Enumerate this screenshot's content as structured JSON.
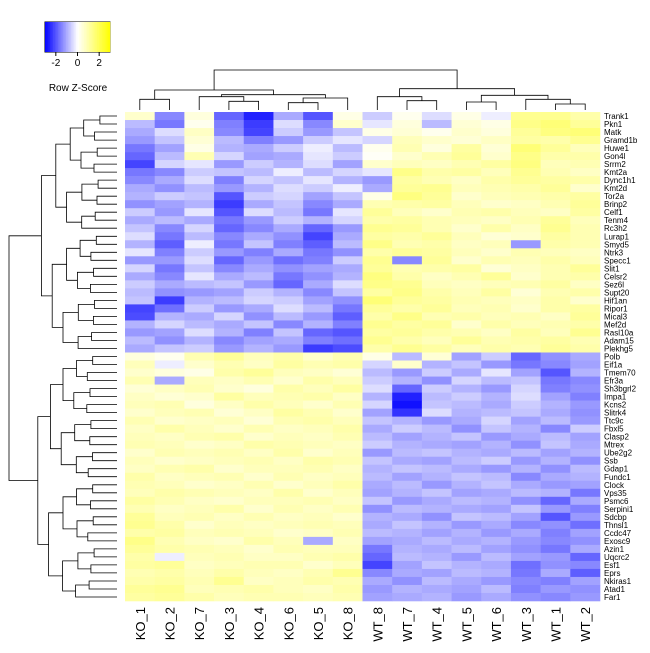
{
  "chart_data": {
    "type": "heatmap",
    "title": "",
    "xlabel": "",
    "ylabel": "",
    "color_key": {
      "label": "Row Z-Score",
      "ticks": [
        "-2",
        "0",
        "2"
      ],
      "range": [
        -3,
        3
      ],
      "colors": {
        "low": "#0000ff",
        "mid": "#ffffff",
        "high": "#ffff00"
      }
    },
    "columns": [
      "KO_1",
      "KO_2",
      "KO_7",
      "KO_3",
      "KO_4",
      "KO_6",
      "KO_5",
      "KO_8",
      "WT_8",
      "WT_7",
      "WT_4",
      "WT_5",
      "WT_6",
      "WT_3",
      "WT_1",
      "WT_2"
    ],
    "rows": [
      "Trank1",
      "Pkn1",
      "Matk",
      "Gramd1b",
      "Huwe1",
      "Gon4l",
      "Srrm2",
      "Kmt2a",
      "Dync1h1",
      "Kmt2d",
      "Tor2a",
      "Brinp2",
      "Celf1",
      "Tenm4",
      "Rc3h2",
      "Lurap1",
      "Smyd5",
      "Ntrk3",
      "Specc1",
      "Slit1",
      "Celsr2",
      "Sez6l",
      "Supt20",
      "Hif1an",
      "Ripor1",
      "Mical3",
      "Mef2d",
      "Rasl10a",
      "Adam15",
      "Plekhg5",
      "Polb",
      "Eif1a",
      "Tmem70",
      "Efr3a",
      "Sh3bgrl2",
      "Impa1",
      "Kcns2",
      "Slitrk4",
      "Ttc9c",
      "Fbxl5",
      "Clasp2",
      "Mtrex",
      "Ube2g2",
      "Ssb",
      "Gdap1",
      "Fundc1",
      "Clock",
      "Vps35",
      "Psmc6",
      "Serpini1",
      "Sdcbp",
      "Thnsl1",
      "Ccdc47",
      "Exosc9",
      "Azin1",
      "Uqcrc2",
      "Esf1",
      "Eprs",
      "Nkiras1",
      "Atad1",
      "Far1"
    ],
    "values": [
      [
        0.6,
        -1.4,
        0.4,
        -1.8,
        -2.6,
        -1.0,
        -2.0,
        0.3,
        -0.6,
        0.2,
        -0.4,
        0.3,
        -0.2,
        1.3,
        1.3,
        1.0
      ],
      [
        -0.8,
        -1.6,
        0.2,
        -1.5,
        -2.3,
        -0.4,
        -1.4,
        0.6,
        -0.3,
        0.4,
        -0.8,
        0.5,
        0.3,
        1.4,
        1.6,
        1.2
      ],
      [
        -1.0,
        -0.4,
        0.7,
        -1.4,
        -2.2,
        -0.6,
        -1.2,
        -0.7,
        0.3,
        0.5,
        0.2,
        0.6,
        0.4,
        1.2,
        1.5,
        1.6
      ],
      [
        -1.2,
        -0.7,
        0.5,
        -0.8,
        -1.5,
        -1.2,
        -0.6,
        -0.3,
        -0.5,
        0.8,
        0.6,
        0.5,
        0.7,
        1.1,
        1.0,
        1.3
      ],
      [
        -1.6,
        -1.1,
        0.3,
        -0.9,
        -1.0,
        -0.6,
        -0.2,
        -0.8,
        0.2,
        0.9,
        0.4,
        1.1,
        0.5,
        1.6,
        1.2,
        0.8
      ],
      [
        -1.8,
        -0.8,
        0.9,
        -0.5,
        -1.1,
        -1.0,
        -0.3,
        -0.6,
        0.1,
        0.6,
        0.9,
        1.2,
        0.6,
        1.4,
        1.0,
        1.0
      ],
      [
        -2.2,
        -0.5,
        -0.3,
        -1.2,
        -0.6,
        -0.9,
        -0.4,
        -1.1,
        0.6,
        0.8,
        0.7,
        0.9,
        1.1,
        1.5,
        0.8,
        0.9
      ],
      [
        -1.6,
        -1.4,
        -0.6,
        -0.7,
        -0.8,
        -0.2,
        -0.8,
        -0.5,
        -0.3,
        1.4,
        1.0,
        1.1,
        0.8,
        1.3,
        0.9,
        0.7
      ],
      [
        -1.4,
        -1.0,
        -0.4,
        -1.5,
        -0.5,
        -0.7,
        -0.3,
        -0.9,
        -1.2,
        1.1,
        0.9,
        0.7,
        1.0,
        1.2,
        1.1,
        1.0
      ],
      [
        -1.0,
        -1.3,
        -0.8,
        -1.2,
        -0.9,
        -0.4,
        -0.6,
        -0.2,
        -1.0,
        1.2,
        1.3,
        0.8,
        0.9,
        1.0,
        1.2,
        0.6
      ],
      [
        -0.9,
        -0.6,
        -0.7,
        -2.0,
        -0.6,
        -0.5,
        -1.1,
        -0.7,
        0.3,
        1.5,
        1.2,
        0.6,
        0.8,
        0.9,
        1.0,
        1.1
      ],
      [
        -1.3,
        -1.1,
        -0.9,
        -2.3,
        -1.0,
        -0.7,
        -1.4,
        -1.0,
        0.9,
        1.0,
        1.1,
        0.8,
        0.6,
        0.7,
        0.9,
        1.2
      ],
      [
        -0.6,
        -1.2,
        -0.3,
        -2.0,
        -0.4,
        -0.8,
        -1.6,
        -0.3,
        1.2,
        0.8,
        0.6,
        0.9,
        1.0,
        0.8,
        0.7,
        1.1
      ],
      [
        -1.0,
        -0.8,
        -1.0,
        -1.6,
        -1.2,
        -0.6,
        -0.9,
        -0.5,
        1.0,
        1.1,
        0.9,
        0.8,
        0.7,
        0.9,
        1.2,
        0.8
      ],
      [
        -0.7,
        -1.4,
        -0.5,
        -1.8,
        -1.4,
        -1.0,
        -1.8,
        -1.2,
        1.3,
        1.2,
        0.9,
        0.6,
        1.0,
        0.7,
        1.3,
        0.9
      ],
      [
        -0.4,
        -1.6,
        -0.8,
        -1.4,
        -1.0,
        -1.3,
        -2.2,
        -1.0,
        1.1,
        1.0,
        1.2,
        0.8,
        0.5,
        0.6,
        1.1,
        0.9
      ],
      [
        -0.9,
        -1.9,
        -0.2,
        -1.6,
        -0.7,
        -1.5,
        -1.9,
        -0.8,
        1.4,
        0.9,
        1.0,
        0.7,
        0.8,
        -1.2,
        1.0,
        0.9
      ],
      [
        -0.3,
        -1.5,
        -0.6,
        -1.2,
        -1.5,
        -1.0,
        -1.6,
        -1.3,
        1.0,
        1.2,
        1.1,
        0.8,
        0.6,
        0.9,
        0.8,
        0.7
      ],
      [
        -1.2,
        -1.2,
        -0.4,
        -1.8,
        -1.2,
        -1.7,
        -1.5,
        -0.6,
        1.3,
        -1.4,
        1.2,
        0.6,
        0.9,
        0.8,
        1.0,
        0.8
      ],
      [
        -0.5,
        -1.6,
        -0.7,
        -1.4,
        -1.0,
        -1.3,
        -1.1,
        -1.0,
        1.2,
        0.9,
        1.0,
        1.1,
        0.5,
        0.7,
        0.9,
        1.2
      ],
      [
        -1.0,
        -1.4,
        -0.3,
        -1.0,
        -0.8,
        -1.6,
        -1.3,
        -0.9,
        1.5,
        1.0,
        0.7,
        0.9,
        1.2,
        0.6,
        0.9,
        1.0
      ],
      [
        -0.6,
        -1.0,
        -0.8,
        -0.7,
        -1.2,
        -1.8,
        -1.0,
        -0.4,
        1.4,
        1.3,
        0.8,
        0.7,
        0.8,
        0.9,
        1.1,
        0.7
      ],
      [
        -0.8,
        -1.3,
        -1.2,
        -1.1,
        -0.6,
        -0.9,
        -1.4,
        -0.7,
        1.1,
        1.4,
        1.0,
        0.8,
        1.1,
        0.5,
        0.9,
        1.0
      ],
      [
        -0.7,
        -2.3,
        -0.9,
        -0.8,
        -0.5,
        -0.6,
        -1.1,
        -1.3,
        1.6,
        1.2,
        1.1,
        0.9,
        0.8,
        0.7,
        1.0,
        0.6
      ],
      [
        -2.2,
        -1.7,
        -0.6,
        -1.2,
        -1.0,
        -0.4,
        -0.8,
        -1.6,
        1.2,
        1.0,
        1.2,
        0.8,
        0.9,
        0.6,
        1.0,
        1.1
      ],
      [
        -2.1,
        -0.9,
        -1.0,
        -0.5,
        -1.3,
        -0.8,
        -1.2,
        -1.9,
        1.0,
        1.4,
        0.9,
        1.0,
        0.8,
        0.9,
        0.7,
        1.2
      ],
      [
        -0.9,
        -0.5,
        -0.8,
        -1.0,
        -0.7,
        -1.4,
        -0.9,
        -1.5,
        1.3,
        1.1,
        1.2,
        0.6,
        1.0,
        0.8,
        0.9,
        1.0
      ],
      [
        -1.2,
        -1.1,
        -0.4,
        -0.9,
        -1.5,
        -0.7,
        -1.8,
        -2.0,
        1.1,
        1.2,
        1.0,
        0.9,
        0.7,
        1.1,
        0.8,
        1.3
      ],
      [
        -0.8,
        -1.3,
        -0.9,
        -1.4,
        -1.1,
        -1.0,
        -1.5,
        -1.7,
        1.3,
        1.0,
        0.8,
        1.2,
        0.9,
        1.0,
        1.1,
        0.9
      ],
      [
        -1.0,
        -0.7,
        -0.6,
        -1.2,
        -0.9,
        -1.2,
        -2.3,
        -2.1,
        1.0,
        1.3,
        1.1,
        0.8,
        1.0,
        0.9,
        1.2,
        1.0
      ],
      [
        0.4,
        0.2,
        0.9,
        1.2,
        0.8,
        1.0,
        0.6,
        0.9,
        0.3,
        -0.8,
        0.5,
        -1.1,
        -0.6,
        -1.8,
        -1.3,
        -1.0
      ],
      [
        0.8,
        -0.2,
        0.6,
        0.9,
        0.7,
        1.1,
        0.9,
        1.0,
        -0.5,
        0.6,
        -0.9,
        -0.7,
        -1.2,
        -1.6,
        -1.4,
        -1.1
      ],
      [
        0.6,
        0.4,
        0.3,
        1.0,
        1.2,
        0.8,
        0.7,
        0.5,
        -0.8,
        -1.2,
        -0.6,
        -1.0,
        -0.3,
        -1.1,
        -2.0,
        -0.9
      ],
      [
        0.9,
        -1.0,
        0.8,
        0.7,
        0.9,
        0.6,
        1.0,
        0.8,
        -0.6,
        -0.9,
        -1.3,
        -0.5,
        -0.8,
        -0.7,
        -1.6,
        -1.4
      ],
      [
        0.5,
        0.7,
        0.9,
        0.6,
        0.4,
        1.0,
        0.8,
        1.1,
        -0.4,
        -1.8,
        -0.6,
        -0.9,
        -1.2,
        -0.5,
        -1.5,
        -1.3
      ],
      [
        0.7,
        0.5,
        0.6,
        1.1,
        0.8,
        0.9,
        1.0,
        0.7,
        -0.9,
        -2.6,
        -0.8,
        -0.6,
        -0.9,
        -0.4,
        -1.1,
        -1.5
      ],
      [
        0.8,
        0.9,
        0.4,
        0.7,
        1.0,
        0.8,
        0.6,
        0.9,
        -0.5,
        -2.8,
        -0.7,
        -0.8,
        -1.0,
        -0.6,
        -0.9,
        -1.2
      ],
      [
        0.6,
        0.8,
        0.9,
        0.5,
        0.7,
        1.1,
        0.9,
        0.6,
        -1.1,
        -2.4,
        -0.4,
        -0.9,
        -0.8,
        -0.7,
        -1.0,
        -1.3
      ],
      [
        0.9,
        0.6,
        0.7,
        0.8,
        0.5,
        0.9,
        1.0,
        0.8,
        -0.7,
        -0.9,
        -1.2,
        -1.0,
        -0.5,
        -1.1,
        -0.8,
        -1.2
      ],
      [
        0.7,
        1.0,
        0.8,
        0.6,
        0.9,
        0.7,
        0.8,
        1.0,
        -1.0,
        -0.6,
        -0.8,
        -1.3,
        -0.7,
        -0.9,
        -1.4,
        -0.6
      ],
      [
        0.8,
        0.7,
        0.9,
        1.0,
        0.6,
        0.8,
        0.7,
        0.9,
        -0.8,
        -1.1,
        -0.9,
        -0.7,
        -1.2,
        -1.0,
        -0.8,
        -1.1
      ],
      [
        0.9,
        0.8,
        0.6,
        0.7,
        1.0,
        0.9,
        0.8,
        0.7,
        -0.6,
        -0.9,
        -1.0,
        -1.1,
        -0.9,
        -1.3,
        -0.7,
        -1.0
      ],
      [
        0.6,
        0.9,
        0.8,
        0.9,
        0.7,
        1.0,
        0.6,
        0.8,
        -1.2,
        -0.8,
        -0.7,
        -0.9,
        -1.0,
        -0.8,
        -1.1,
        -0.9
      ],
      [
        0.8,
        0.6,
        0.7,
        0.8,
        0.9,
        0.7,
        1.0,
        0.9,
        -0.7,
        -1.0,
        -1.1,
        -0.8,
        -0.6,
        -1.2,
        -0.9,
        -1.3
      ],
      [
        0.7,
        0.9,
        1.0,
        0.6,
        0.8,
        0.8,
        0.9,
        0.7,
        -0.9,
        -0.7,
        -0.8,
        -1.0,
        -1.2,
        -0.9,
        -1.3,
        -0.8
      ],
      [
        1.0,
        0.7,
        0.8,
        0.9,
        0.6,
        0.9,
        0.7,
        0.8,
        -0.8,
        -1.1,
        -0.9,
        -0.7,
        -0.8,
        -1.4,
        -1.0,
        -0.9
      ],
      [
        0.9,
        0.8,
        0.6,
        0.7,
        0.9,
        0.6,
        0.8,
        1.0,
        -1.0,
        -0.8,
        -1.2,
        -0.9,
        -0.7,
        -1.0,
        -1.2,
        -1.1
      ],
      [
        0.8,
        1.0,
        0.9,
        0.8,
        0.7,
        1.0,
        0.6,
        0.8,
        -1.1,
        -0.9,
        -0.7,
        -1.1,
        -1.0,
        -0.8,
        -0.9,
        -1.6
      ],
      [
        1.1,
        0.9,
        0.7,
        0.6,
        0.8,
        0.8,
        0.9,
        0.7,
        -0.7,
        -1.2,
        -1.0,
        -0.8,
        -0.9,
        -1.3,
        -1.8,
        -1.0
      ],
      [
        0.9,
        0.7,
        0.8,
        1.0,
        0.6,
        0.9,
        0.7,
        0.9,
        -1.3,
        -0.8,
        -0.9,
        -1.0,
        -1.1,
        -0.7,
        -1.2,
        -1.5
      ],
      [
        1.2,
        0.8,
        0.9,
        0.7,
        0.9,
        0.7,
        0.8,
        0.6,
        -0.9,
        -1.0,
        -1.3,
        -0.7,
        -0.8,
        -1.1,
        -2.0,
        -1.2
      ],
      [
        1.3,
        1.0,
        0.6,
        0.8,
        0.7,
        0.8,
        0.9,
        0.8,
        -1.0,
        -0.7,
        -0.9,
        -1.2,
        -1.0,
        -1.4,
        -1.3,
        -1.7
      ],
      [
        1.0,
        1.1,
        0.8,
        0.9,
        0.8,
        0.6,
        0.7,
        0.9,
        -0.8,
        -0.9,
        -1.1,
        -0.9,
        -1.2,
        -1.0,
        -1.5,
        -1.1
      ],
      [
        1.4,
        0.9,
        0.7,
        0.6,
        1.0,
        0.8,
        -1.0,
        0.7,
        -1.1,
        -1.0,
        -0.8,
        -1.0,
        -0.9,
        -1.2,
        -1.4,
        -1.3
      ],
      [
        1.2,
        1.0,
        0.9,
        0.8,
        0.6,
        0.9,
        0.8,
        0.8,
        -1.6,
        -0.9,
        -1.0,
        -0.8,
        -1.1,
        -1.3,
        -1.6,
        -1.0
      ],
      [
        1.0,
        -0.2,
        0.8,
        0.9,
        0.7,
        0.7,
        0.9,
        1.0,
        -1.8,
        -0.8,
        -0.9,
        -1.2,
        -0.8,
        -1.1,
        -1.2,
        -1.8
      ],
      [
        1.1,
        1.2,
        0.7,
        0.8,
        0.9,
        0.9,
        0.6,
        0.8,
        -2.2,
        -1.1,
        -0.7,
        -0.9,
        -1.0,
        -1.7,
        -1.3,
        -1.4
      ],
      [
        0.9,
        1.0,
        0.8,
        1.0,
        0.8,
        0.7,
        0.9,
        1.3,
        -1.4,
        -1.0,
        -1.1,
        -0.8,
        -0.9,
        -1.6,
        -1.0,
        -1.9
      ],
      [
        1.0,
        1.1,
        0.9,
        1.3,
        0.7,
        0.8,
        1.0,
        0.9,
        -1.0,
        -1.3,
        -0.8,
        -1.0,
        -1.2,
        -1.4,
        -1.5,
        -1.1
      ],
      [
        1.2,
        1.3,
        0.8,
        0.9,
        1.0,
        0.8,
        0.7,
        1.0,
        -1.2,
        -0.9,
        -1.0,
        -1.1,
        -0.8,
        -1.5,
        -1.2,
        -1.3
      ],
      [
        1.1,
        1.2,
        1.0,
        0.8,
        0.9,
        0.9,
        0.8,
        0.9,
        -1.1,
        -1.0,
        -0.9,
        -1.2,
        -1.0,
        -1.3,
        -1.4,
        -1.2
      ]
    ]
  }
}
